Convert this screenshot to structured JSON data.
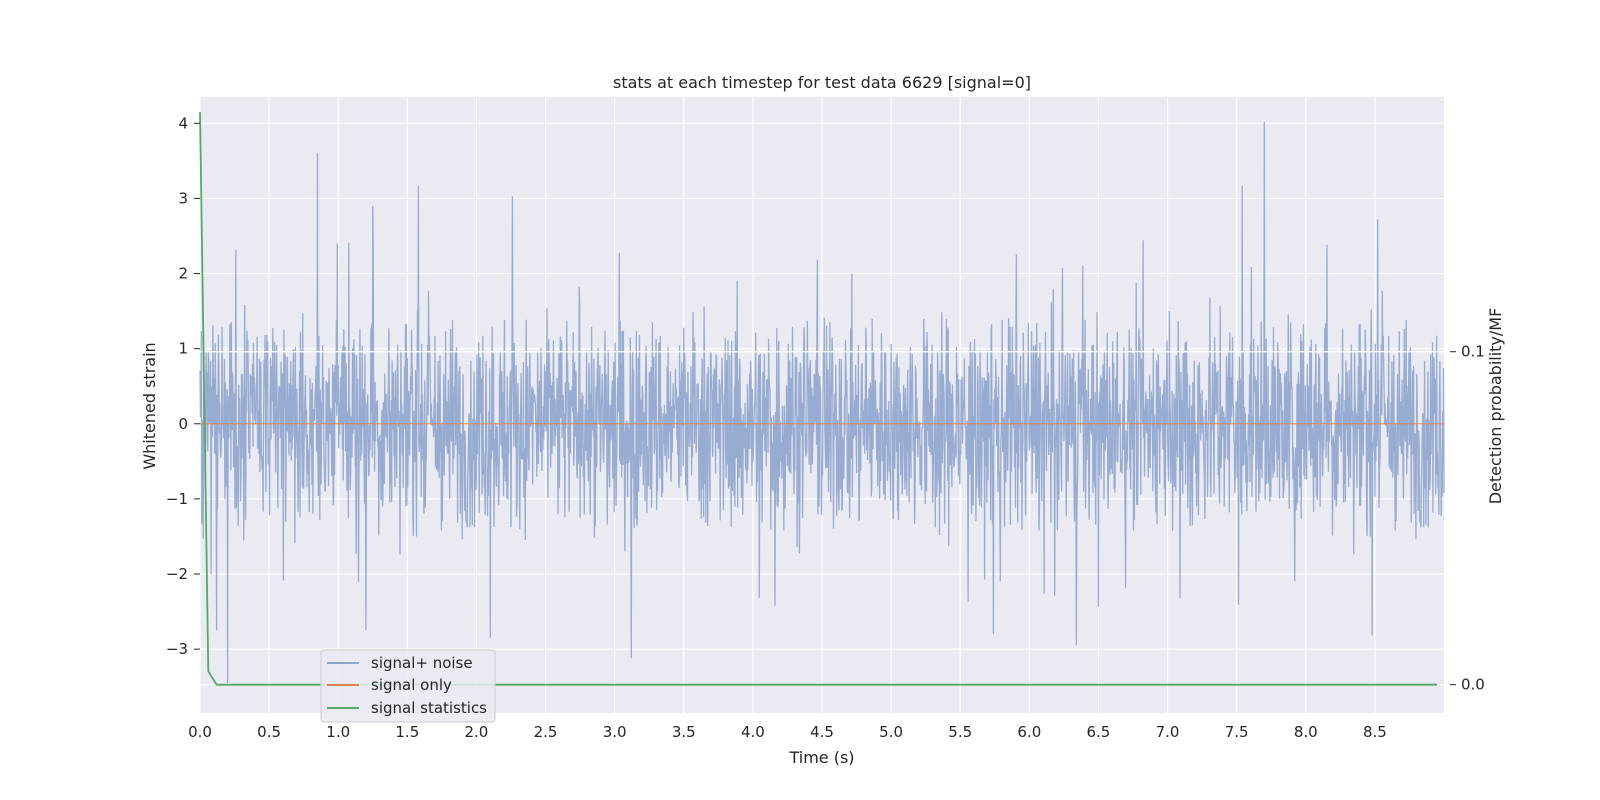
{
  "chart_data": {
    "type": "line",
    "title": "stats at each timestep for test data 6629 [signal=0]",
    "xlabel": "Time (s)",
    "ylabel": "Whitened strain",
    "y2label": "Detection probability/MF",
    "xlim": [
      0,
      9.0
    ],
    "ylim": [
      -3.85,
      4.35
    ],
    "y2lim": [
      -0.0085,
      0.1765
    ],
    "xticks": [
      0.0,
      0.5,
      1.0,
      1.5,
      2.0,
      2.5,
      3.0,
      3.5,
      4.0,
      4.5,
      5.0,
      5.5,
      6.0,
      6.5,
      7.0,
      7.5,
      8.0,
      8.5
    ],
    "xtick_labels": [
      "0.0",
      "0.5",
      "1.0",
      "1.5",
      "2.0",
      "2.5",
      "3.0",
      "3.5",
      "4.0",
      "4.5",
      "5.0",
      "5.5",
      "6.0",
      "6.5",
      "7.0",
      "7.5",
      "8.0",
      "8.5"
    ],
    "yticks": [
      4,
      3,
      2,
      1,
      0,
      -1,
      -2,
      -3
    ],
    "ytick_labels": [
      "4",
      "3",
      "2",
      "1",
      "0",
      "−1",
      "−2",
      "−3"
    ],
    "y2ticks": [
      0.1,
      0.0
    ],
    "y2tick_labels": [
      "0.1",
      "0.0"
    ],
    "grid": true,
    "legend_position": "bottom-left",
    "series": [
      {
        "name": "signal+ noise",
        "color": "#8fa4cd",
        "axis": "left",
        "kind": "noise",
        "sample_rate_hz": 300,
        "band": [
          -1.4,
          1.4
        ],
        "peaks": [
          {
            "x": 0.85,
            "y": 3.6
          },
          {
            "x": 1.25,
            "y": 2.9
          },
          {
            "x": 1.58,
            "y": 3.17
          },
          {
            "x": 2.26,
            "y": 3.03
          },
          {
            "x": 7.54,
            "y": 3.17
          },
          {
            "x": 7.7,
            "y": 4.02
          },
          {
            "x": 8.52,
            "y": 2.72
          },
          {
            "x": 0.2,
            "y": -3.45
          },
          {
            "x": 3.12,
            "y": -3.12
          },
          {
            "x": 6.34,
            "y": -2.95
          },
          {
            "x": 8.48,
            "y": -2.82
          },
          {
            "x": 5.74,
            "y": -2.8
          },
          {
            "x": 0.12,
            "y": -2.75
          },
          {
            "x": 1.2,
            "y": -2.75
          },
          {
            "x": 2.1,
            "y": -2.85
          }
        ]
      },
      {
        "name": "signal only",
        "color": "#dd8452",
        "axis": "left",
        "x": [
          0.0,
          9.0
        ],
        "y": [
          0.0,
          0.0
        ]
      },
      {
        "name": "signal statistics",
        "color": "#55a868",
        "axis": "right",
        "x": [
          0.0,
          0.06,
          0.12,
          0.5,
          1.0,
          2.0,
          3.0,
          4.0,
          5.0,
          6.0,
          7.0,
          8.0,
          8.95
        ],
        "y": [
          0.172,
          0.004,
          0.0,
          0.0,
          0.0,
          0.0,
          0.0,
          0.0,
          0.0,
          0.0,
          0.0,
          0.0,
          0.0
        ]
      }
    ]
  }
}
